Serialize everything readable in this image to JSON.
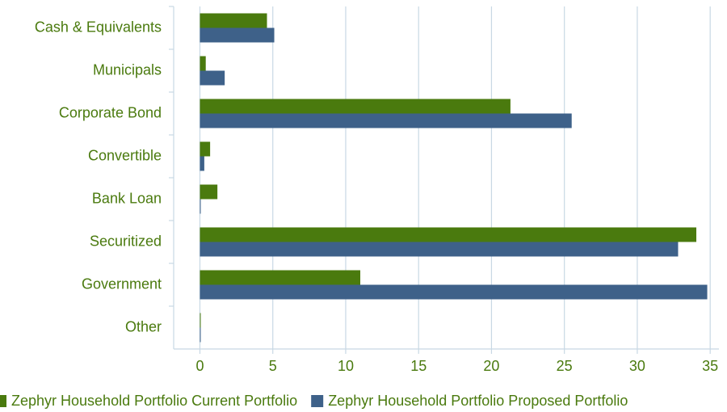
{
  "chart_data": {
    "type": "bar",
    "orientation": "horizontal",
    "categories": [
      "Cash & Equivalents",
      "Municipals",
      "Corporate Bond",
      "Convertible",
      "Bank Loan",
      "Securitized",
      "Government",
      "Other"
    ],
    "series": [
      {
        "name": "Zephyr Household Portfolio Current Portfolio",
        "color": "#4a7a0e",
        "values": [
          4.6,
          0.4,
          21.3,
          0.7,
          1.2,
          34.05,
          11.0,
          0.05
        ]
      },
      {
        "name": "Zephyr Household Portfolio Proposed Portfolio",
        "color": "#3e6189",
        "values": [
          5.1,
          1.7,
          25.5,
          0.3,
          0.05,
          32.8,
          34.8,
          0.05
        ]
      }
    ],
    "xlim": [
      -1.8,
      35.6
    ],
    "xticks": [
      0,
      5,
      10,
      15,
      20,
      25,
      30,
      35
    ],
    "grid": true,
    "legend": "bottom"
  }
}
